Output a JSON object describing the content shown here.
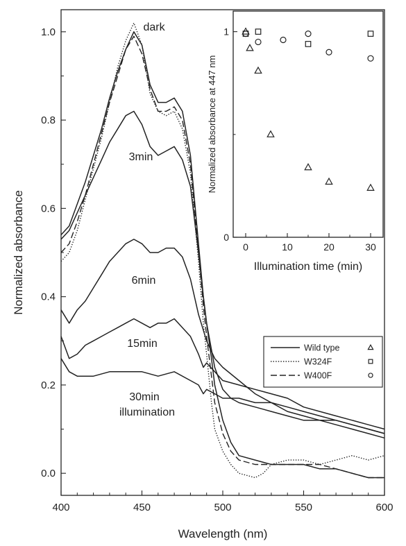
{
  "chart_data": [
    {
      "type": "line",
      "xlabel": "Wavelength (nm)",
      "ylabel": "Normalized absorbance",
      "xlim": [
        400,
        600
      ],
      "ylim": [
        -0.05,
        1.05
      ],
      "x_ticks": [
        400,
        450,
        500,
        550,
        600
      ],
      "y_ticks": [
        0.0,
        0.2,
        0.4,
        0.6,
        0.8,
        1.0
      ],
      "grid": false,
      "legend": {
        "position": "right",
        "entries": [
          {
            "name": "Wild type",
            "line": "solid",
            "marker": "triangle"
          },
          {
            "name": "W324F",
            "line": "dotted",
            "marker": "square"
          },
          {
            "name": "W400F",
            "line": "dashed",
            "marker": "circle"
          }
        ]
      },
      "annotations": [
        "dark",
        "3min",
        "6min",
        "15min",
        "30min",
        "illumination"
      ],
      "series": [
        {
          "name": "Wild type",
          "label": "dark",
          "style": "solid",
          "x": [
            400,
            405,
            410,
            415,
            420,
            425,
            430,
            435,
            440,
            445,
            450,
            455,
            460,
            465,
            470,
            475,
            480,
            485,
            488,
            490,
            493,
            495,
            500,
            505,
            510,
            520,
            530,
            540,
            550,
            560,
            570,
            580,
            590,
            600
          ],
          "y": [
            0.54,
            0.56,
            0.61,
            0.66,
            0.72,
            0.78,
            0.85,
            0.91,
            0.96,
            1.0,
            0.97,
            0.88,
            0.84,
            0.84,
            0.85,
            0.82,
            0.72,
            0.52,
            0.4,
            0.34,
            0.26,
            0.2,
            0.12,
            0.07,
            0.04,
            0.03,
            0.02,
            0.02,
            0.02,
            0.01,
            0.01,
            0.0,
            -0.01,
            -0.01
          ]
        },
        {
          "name": "W324F",
          "label": "dark",
          "style": "dotted",
          "x": [
            400,
            405,
            410,
            415,
            420,
            425,
            430,
            435,
            440,
            445,
            450,
            455,
            460,
            465,
            470,
            475,
            480,
            485,
            488,
            490,
            493,
            495,
            500,
            505,
            510,
            520,
            525,
            530,
            540,
            550,
            560,
            570,
            580,
            590,
            600
          ],
          "y": [
            0.48,
            0.5,
            0.55,
            0.62,
            0.69,
            0.76,
            0.84,
            0.92,
            0.98,
            1.02,
            0.97,
            0.86,
            0.82,
            0.81,
            0.82,
            0.78,
            0.68,
            0.48,
            0.34,
            0.27,
            0.16,
            0.1,
            0.05,
            0.02,
            0.0,
            -0.01,
            0.0,
            0.02,
            0.03,
            0.03,
            0.02,
            0.03,
            0.04,
            0.03,
            0.04
          ]
        },
        {
          "name": "W400F",
          "label": "dark",
          "style": "dashed",
          "x": [
            400,
            405,
            410,
            415,
            420,
            425,
            430,
            435,
            440,
            445,
            450,
            455,
            460,
            465,
            470,
            475,
            480,
            485,
            488,
            490,
            493,
            495,
            500,
            505,
            510,
            520,
            530,
            540,
            550,
            560,
            570,
            580,
            590,
            600
          ],
          "y": [
            0.5,
            0.52,
            0.57,
            0.63,
            0.7,
            0.77,
            0.84,
            0.9,
            0.96,
            0.99,
            0.95,
            0.87,
            0.82,
            0.82,
            0.83,
            0.8,
            0.7,
            0.5,
            0.38,
            0.31,
            0.22,
            0.16,
            0.09,
            0.05,
            0.03,
            0.02,
            0.02,
            0.02,
            0.02,
            0.02,
            0.01,
            0.0,
            -0.01,
            -0.01
          ]
        },
        {
          "name": "Wild type",
          "label": "3min",
          "style": "solid",
          "x": [
            400,
            405,
            410,
            415,
            420,
            425,
            430,
            435,
            440,
            445,
            450,
            455,
            460,
            465,
            470,
            475,
            480,
            485,
            488,
            490,
            493,
            495,
            500,
            505,
            510,
            520,
            530,
            540,
            550,
            560,
            570,
            580,
            590,
            600
          ],
          "y": [
            0.53,
            0.55,
            0.59,
            0.63,
            0.67,
            0.71,
            0.75,
            0.78,
            0.81,
            0.82,
            0.79,
            0.74,
            0.72,
            0.73,
            0.74,
            0.71,
            0.65,
            0.5,
            0.4,
            0.34,
            0.28,
            0.24,
            0.19,
            0.17,
            0.16,
            0.15,
            0.14,
            0.13,
            0.12,
            0.12,
            0.11,
            0.1,
            0.09,
            0.08
          ]
        },
        {
          "name": "Wild type",
          "label": "6min",
          "style": "solid",
          "x": [
            400,
            405,
            410,
            415,
            420,
            425,
            430,
            435,
            440,
            445,
            450,
            455,
            460,
            465,
            470,
            475,
            480,
            485,
            490,
            495,
            500,
            510,
            520,
            530,
            540,
            550,
            560,
            570,
            580,
            590,
            600
          ],
          "y": [
            0.37,
            0.34,
            0.37,
            0.39,
            0.42,
            0.45,
            0.48,
            0.5,
            0.52,
            0.53,
            0.52,
            0.5,
            0.5,
            0.51,
            0.51,
            0.49,
            0.44,
            0.36,
            0.3,
            0.26,
            0.24,
            0.21,
            0.18,
            0.16,
            0.14,
            0.13,
            0.12,
            0.12,
            0.11,
            0.1,
            0.09
          ]
        },
        {
          "name": "Wild type",
          "label": "15min",
          "style": "solid",
          "x": [
            400,
            405,
            410,
            415,
            420,
            425,
            430,
            435,
            440,
            445,
            450,
            455,
            460,
            465,
            470,
            475,
            480,
            485,
            488,
            490,
            495,
            500,
            510,
            520,
            530,
            540,
            550,
            560,
            570,
            580,
            590,
            600
          ],
          "y": [
            0.31,
            0.26,
            0.27,
            0.29,
            0.3,
            0.31,
            0.32,
            0.33,
            0.34,
            0.35,
            0.34,
            0.33,
            0.34,
            0.34,
            0.35,
            0.33,
            0.31,
            0.27,
            0.24,
            0.25,
            0.23,
            0.21,
            0.2,
            0.19,
            0.18,
            0.17,
            0.15,
            0.14,
            0.13,
            0.12,
            0.11,
            0.1
          ]
        },
        {
          "name": "Wild type",
          "label": "30min illumination",
          "style": "solid",
          "x": [
            400,
            405,
            410,
            420,
            430,
            440,
            450,
            460,
            470,
            480,
            485,
            488,
            490,
            495,
            500,
            510,
            520,
            530,
            540,
            550,
            560,
            570,
            580,
            590,
            600
          ],
          "y": [
            0.26,
            0.23,
            0.22,
            0.22,
            0.23,
            0.23,
            0.23,
            0.22,
            0.23,
            0.21,
            0.2,
            0.18,
            0.19,
            0.18,
            0.17,
            0.17,
            0.16,
            0.16,
            0.15,
            0.14,
            0.13,
            0.12,
            0.11,
            0.1,
            0.09
          ]
        }
      ]
    },
    {
      "type": "scatter",
      "xlabel": "Illumination time (min)",
      "ylabel": "Normalized absorbance at 447 nm",
      "xlim": [
        -3,
        33
      ],
      "ylim": [
        0,
        1.1
      ],
      "x_ticks": [
        0,
        10,
        20,
        30
      ],
      "y_ticks": [
        0,
        1
      ],
      "grid": false,
      "series": [
        {
          "name": "Wild type",
          "marker": "triangle",
          "x": [
            0,
            1,
            3,
            6,
            15,
            20,
            30
          ],
          "y": [
            1.0,
            0.92,
            0.81,
            0.5,
            0.34,
            0.27,
            0.24
          ]
        },
        {
          "name": "W324F",
          "marker": "square",
          "x": [
            0,
            3,
            15,
            30
          ],
          "y": [
            0.99,
            1.0,
            0.94,
            0.99
          ]
        },
        {
          "name": "W400F",
          "marker": "circle",
          "x": [
            0,
            3,
            9,
            15,
            20,
            30
          ],
          "y": [
            0.99,
            0.95,
            0.96,
            0.99,
            0.9,
            0.87
          ]
        }
      ]
    }
  ]
}
